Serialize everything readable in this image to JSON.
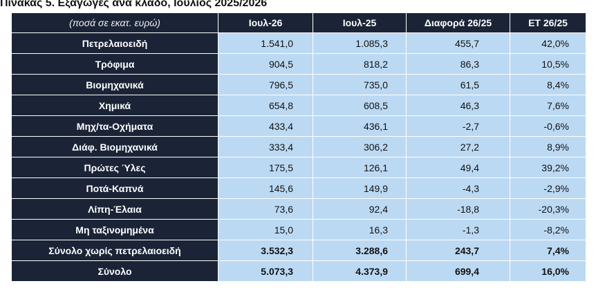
{
  "title": "Πίνακας 5. Εξαγωγές ανά κλάδο, Ιούλιος 2025/2026",
  "header": {
    "unit": "(ποσά σε εκατ. ευρώ)",
    "columns": [
      "Ιουλ-26",
      "Ιουλ-25",
      "Διαφορά 26/25",
      "ΕΤ 26/25"
    ]
  },
  "rows": [
    {
      "label": "Πετρελαιοειδή",
      "values": [
        "1.541,0",
        "1.085,3",
        "455,7",
        "42,0%"
      ]
    },
    {
      "label": "Τρόφιμα",
      "values": [
        "904,5",
        "818,2",
        "86,3",
        "10,5%"
      ]
    },
    {
      "label": "Βιομηχανικά",
      "values": [
        "796,5",
        "735,0",
        "61,5",
        "8,4%"
      ]
    },
    {
      "label": "Χημικά",
      "values": [
        "654,8",
        "608,5",
        "46,3",
        "7,6%"
      ]
    },
    {
      "label": "Μηχ/τα-Οχήματα",
      "values": [
        "433,4",
        "436,1",
        "-2,7",
        "-0,6%"
      ]
    },
    {
      "label": "Διάφ. Βιομηχανικά",
      "values": [
        "333,4",
        "306,2",
        "27,2",
        "8,9%"
      ]
    },
    {
      "label": "Πρώτες Ύλες",
      "values": [
        "175,5",
        "126,1",
        "49,4",
        "39,2%"
      ]
    },
    {
      "label": "Ποτά-Καπνά",
      "values": [
        "145,6",
        "149,9",
        "-4,3",
        "-2,9%"
      ]
    },
    {
      "label": "Λίπη-Έλαια",
      "values": [
        "73,6",
        "92,4",
        "-18,8",
        "-20,3%"
      ]
    },
    {
      "label": "Μη ταξινομημένα",
      "values": [
        "15,0",
        "16,3",
        "-1,3",
        "-8,2%"
      ]
    }
  ],
  "totals": [
    {
      "label": "Σύνολο χωρίς πετρελαιοειδή",
      "values": [
        "3.532,3",
        "3.288,6",
        "243,7",
        "7,4%"
      ]
    },
    {
      "label": "Σύνολο",
      "values": [
        "5.073,3",
        "4.373,9",
        "699,4",
        "16,0%"
      ]
    }
  ],
  "colors": {
    "header_bg": "#1b2437",
    "cell_bg": "#bcd9f3",
    "header_text": "#ffffff"
  }
}
